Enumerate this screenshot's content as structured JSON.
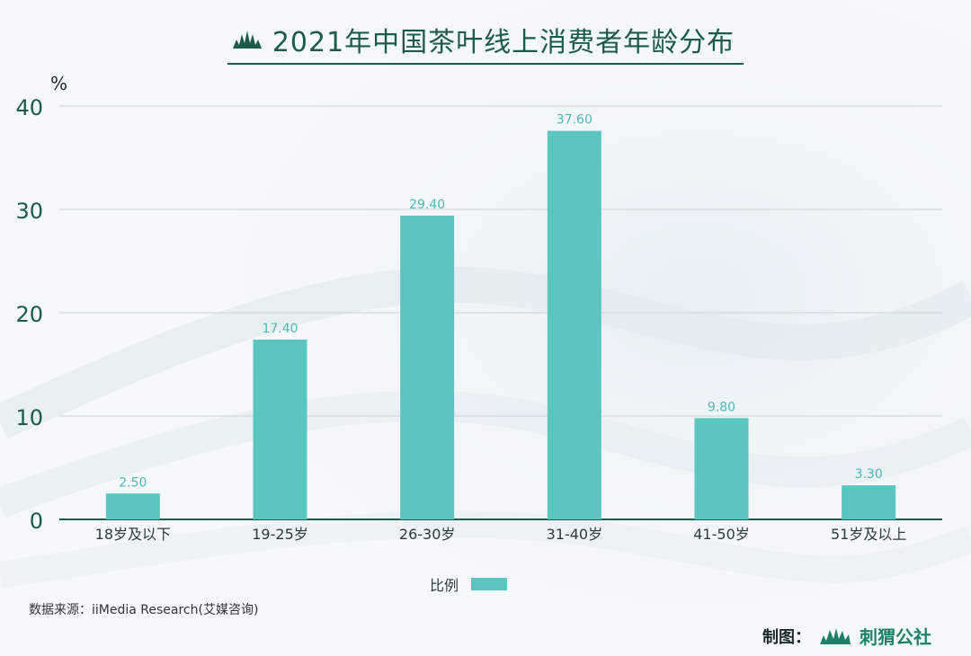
{
  "title": "2021年中国茶叶线上消费者年龄分布",
  "colors": {
    "bar": "#5bc5c0",
    "title": "#1b5a4c",
    "axis": "#1b5a4c",
    "grid": "#c9d3d6",
    "label": "#2a3b3a",
    "value": "#4fb8b3"
  },
  "chart_data": {
    "type": "bar",
    "title": "2021年中国茶叶线上消费者年龄分布",
    "ylabel": "%",
    "xlabel": "",
    "ylim": [
      0,
      40
    ],
    "yticks": [
      "0",
      "10",
      "20",
      "30",
      "40"
    ],
    "grid": true,
    "legend_position": "bottom",
    "categories": [
      "18岁及以下",
      "19-25岁",
      "26-30岁",
      "31-40岁",
      "41-50岁",
      "51岁及以上"
    ],
    "series": [
      {
        "name": "比例",
        "values": [
          2.5,
          17.4,
          29.4,
          37.6,
          9.8,
          3.3
        ],
        "labels": [
          "2.50",
          "17.40",
          "29.40",
          "37.60",
          "9.80",
          "3.30"
        ]
      }
    ]
  },
  "legend": {
    "label": "比例"
  },
  "source": "数据来源：iiMedia Research(艾媒咨询)",
  "credit": {
    "label": "制图：",
    "brand": "刺猬公社"
  }
}
